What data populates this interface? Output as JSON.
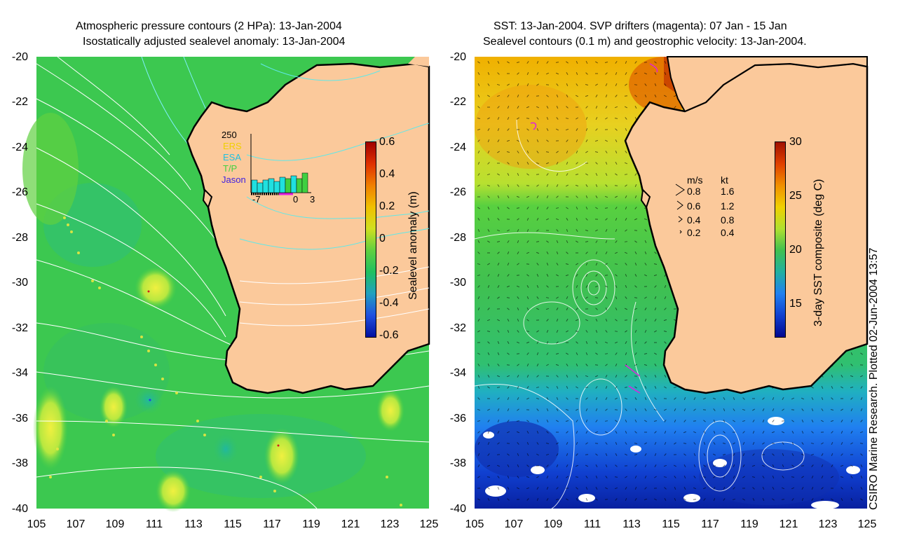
{
  "left_panel": {
    "title_line1": "Atmospheric pressure contours (2 HPa): 13-Jan-2004",
    "title_line2": "Isostatically adjusted sealevel anomaly: 13-Jan-2004",
    "colorbar_label": "Sealevel anomaly (m)",
    "colorbar_ticks": [
      "0.6",
      "0.4",
      "0.2",
      "0",
      "-0.2",
      "-0.4",
      "-0.6"
    ],
    "inset": {
      "ymax": "250",
      "legend": [
        "ERS",
        "ESA",
        "T/P",
        "Jason"
      ],
      "legend_colors": [
        "#f0d000",
        "#20c0e0",
        "#40d040",
        "#4020e0"
      ],
      "xticks": [
        "-7",
        "0",
        "3"
      ]
    }
  },
  "right_panel": {
    "title_line1": "SST: 13-Jan-2004. SVP drifters (magenta): 07 Jan - 15 Jan",
    "title_line2": "Sealevel contours (0.1 m) and geostrophic velocity: 13-Jan-2004.",
    "colorbar_label": "3-day SST composite (deg C)",
    "colorbar_ticks": [
      "30",
      "25",
      "20",
      "15"
    ],
    "velocity_legend": {
      "header_ms": "m/s",
      "header_kt": "kt",
      "rows": [
        {
          "ms": "0.8",
          "kt": "1.6"
        },
        {
          "ms": "0.6",
          "kt": "1.2"
        },
        {
          "ms": "0.4",
          "kt": "0.8"
        },
        {
          "ms": "0.2",
          "kt": "0.4"
        }
      ]
    }
  },
  "axes": {
    "lat_ticks": [
      "-20",
      "-22",
      "-24",
      "-26",
      "-28",
      "-30",
      "-32",
      "-34",
      "-36",
      "-38",
      "-40"
    ],
    "lon_ticks": [
      "105",
      "107",
      "109",
      "111",
      "113",
      "115",
      "117",
      "119",
      "121",
      "123",
      "125"
    ]
  },
  "credit": "CSIRO Marine Research. Plotted 02-Jun-2004 13:57",
  "colors": {
    "land": "#fbc99b",
    "coast": "#000000"
  }
}
